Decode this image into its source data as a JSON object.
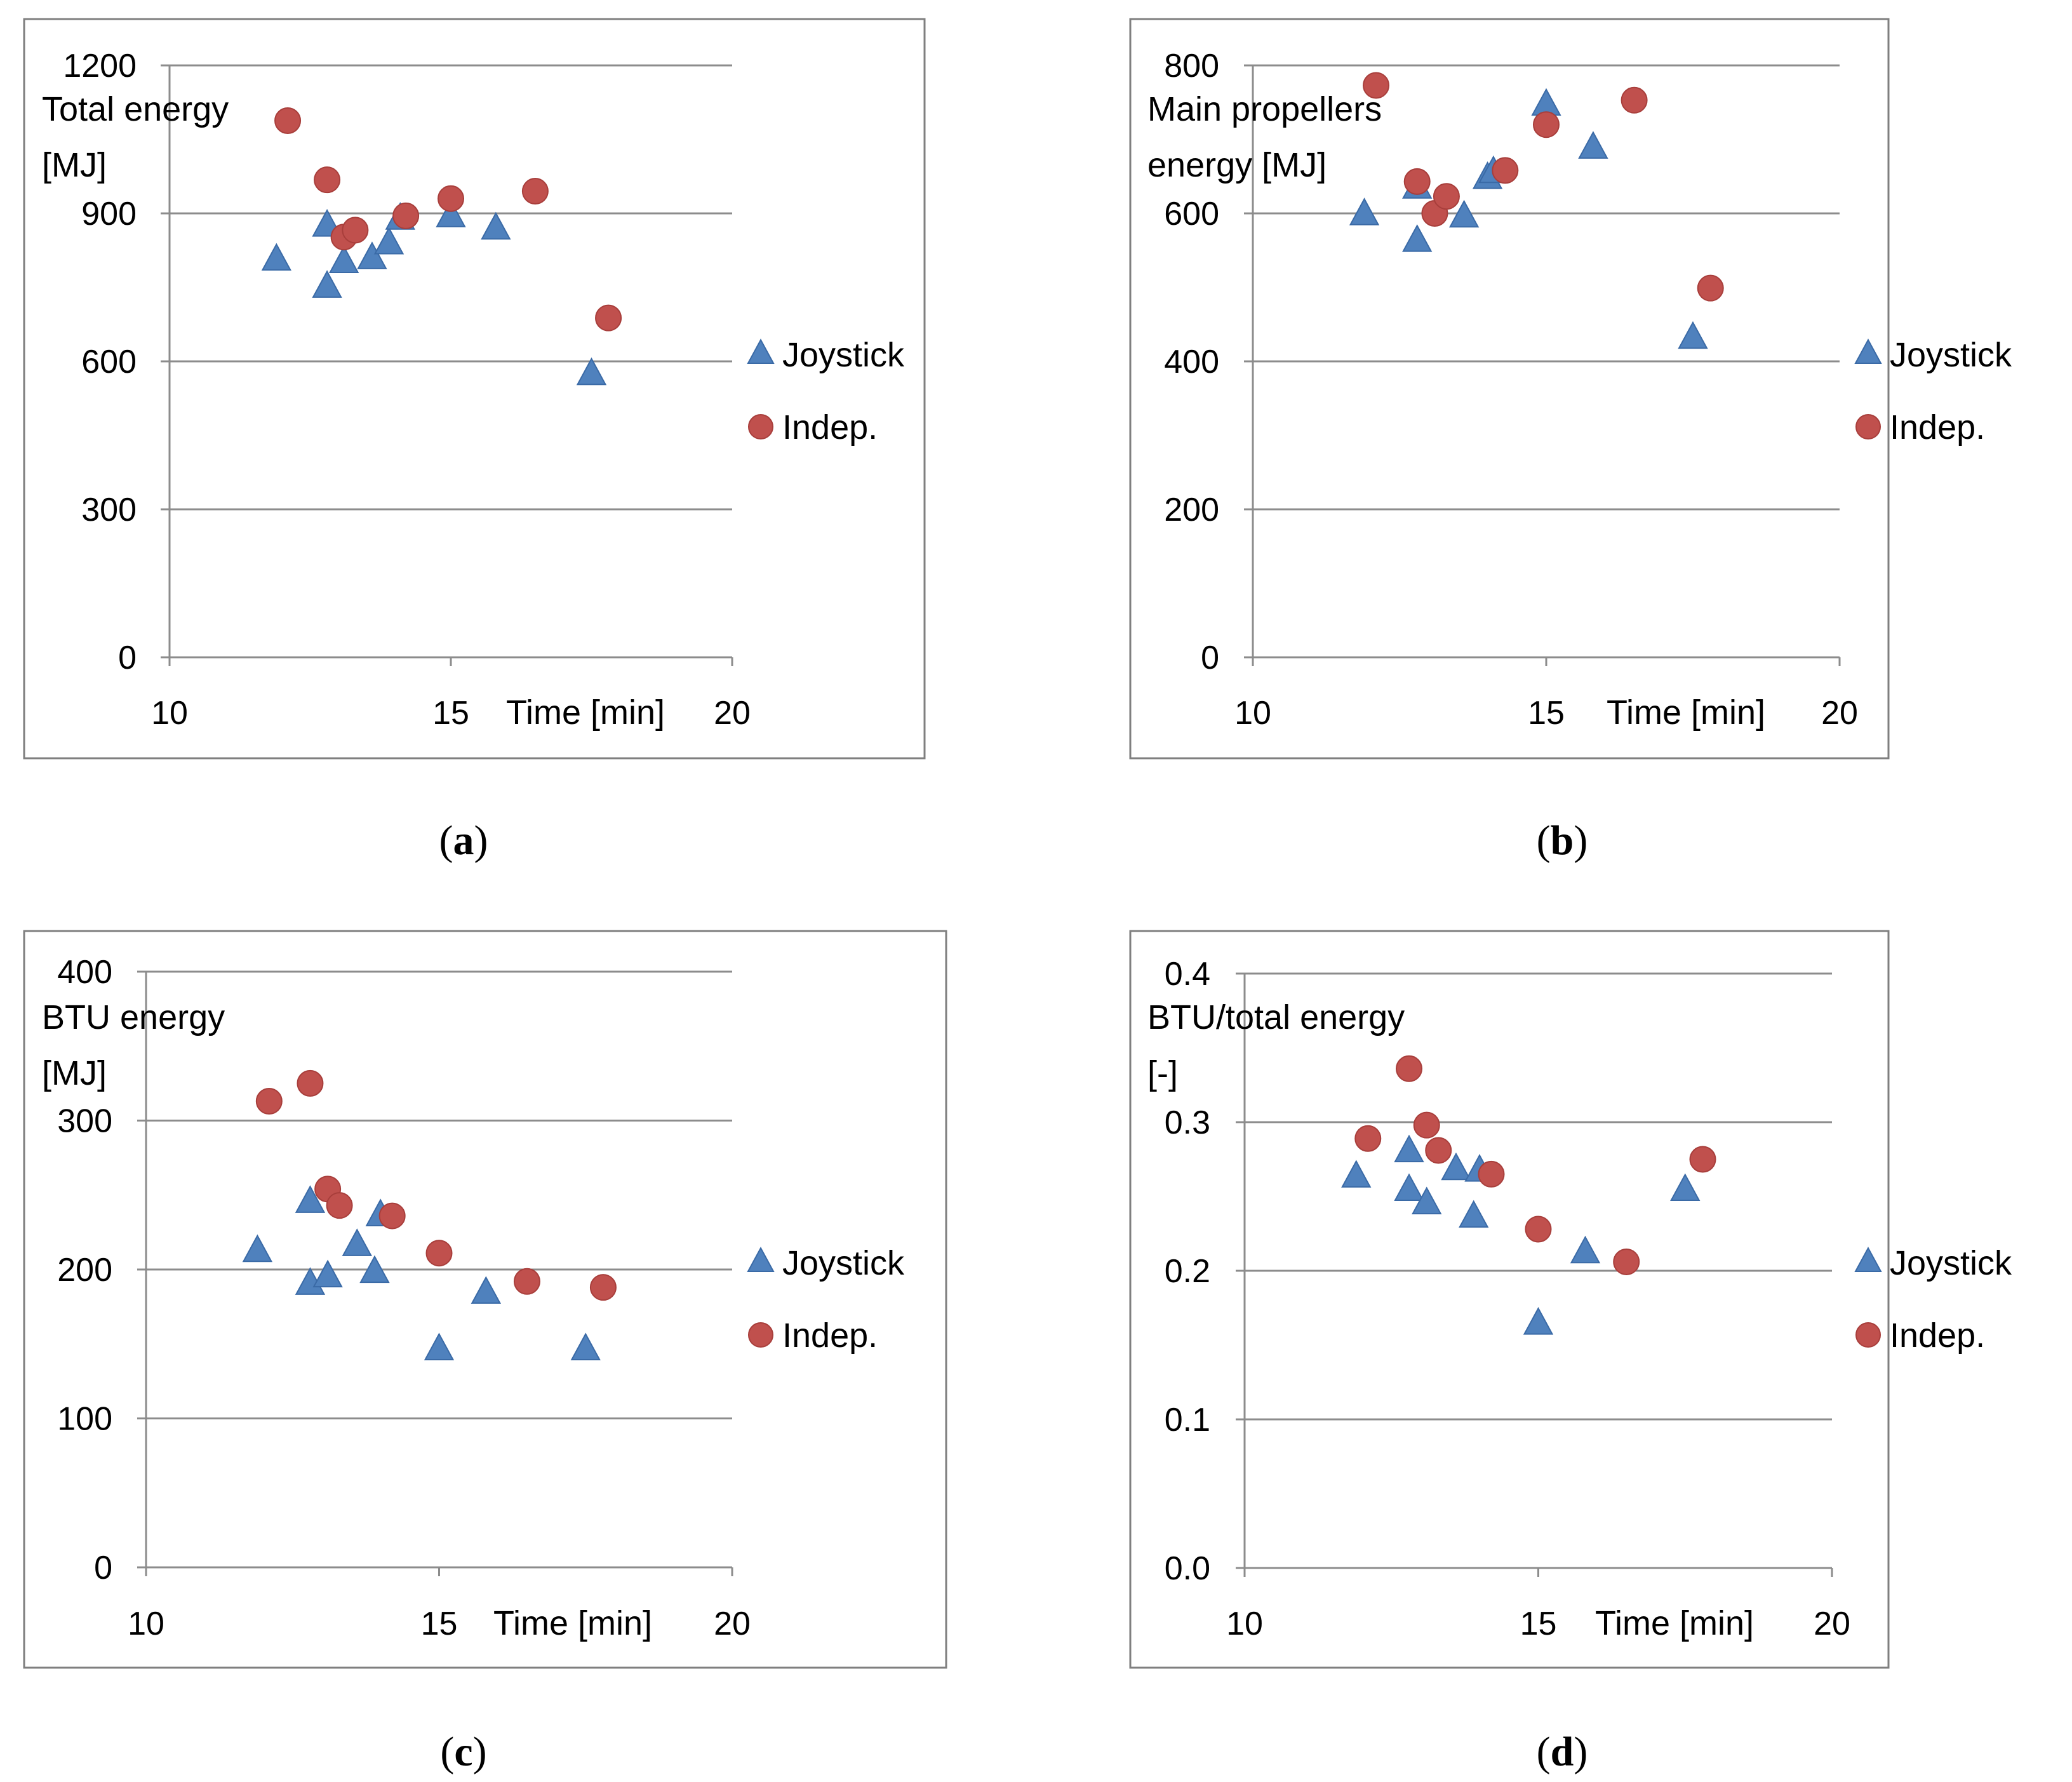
{
  "colors": {
    "joystick": "#4F81BD",
    "joystick_edge": "#3A6AA6",
    "indep": "#C0504D",
    "indep_edge": "#A83E3B",
    "grid": "#8C8C8C",
    "frame": "#7F7F7F"
  },
  "chart_data": [
    {
      "type": "scatter",
      "caption_open": "(",
      "caption_letter": "a",
      "caption_close": ")",
      "ylabel_lines": [
        "Total energy",
        "[MJ]"
      ],
      "xlabel": "Time [min]",
      "xlim": [
        10,
        20
      ],
      "ylim": [
        0,
        1200
      ],
      "xticks": [
        10,
        15,
        20
      ],
      "yticks": [
        0,
        300,
        600,
        900,
        1200
      ],
      "ytick_labels": [
        "0",
        "300",
        "600",
        "900",
        "1200"
      ],
      "grid": true,
      "legend": "right",
      "series": [
        {
          "name": "Joystick",
          "marker": "triangle",
          "points": [
            [
              11.9,
              805
            ],
            [
              12.8,
              874
            ],
            [
              12.8,
              750
            ],
            [
              13.1,
              800
            ],
            [
              13.6,
              808
            ],
            [
              13.9,
              838
            ],
            [
              14.1,
              888
            ],
            [
              15.0,
              893
            ],
            [
              15.8,
              868
            ],
            [
              17.5,
              573
            ]
          ]
        },
        {
          "name": "Indep.",
          "marker": "circle",
          "points": [
            [
              12.1,
              1088
            ],
            [
              12.8,
              968
            ],
            [
              13.1,
              852
            ],
            [
              13.3,
              866
            ],
            [
              14.2,
              895
            ],
            [
              15.0,
              930
            ],
            [
              16.5,
              945
            ],
            [
              17.8,
              688
            ]
          ]
        }
      ]
    },
    {
      "type": "scatter",
      "caption_open": "(",
      "caption_letter": "b",
      "caption_close": ")",
      "ylabel_lines": [
        "Main propellers",
        "energy [MJ]"
      ],
      "xlabel": "Time [min]",
      "xlim": [
        10,
        20
      ],
      "ylim": [
        0,
        800
      ],
      "xticks": [
        10,
        15,
        20
      ],
      "yticks": [
        0,
        200,
        400,
        600,
        800
      ],
      "ytick_labels": [
        "0",
        "200",
        "400",
        "600",
        "800"
      ],
      "grid": true,
      "legend": "right",
      "series": [
        {
          "name": "Joystick",
          "marker": "triangle",
          "points": [
            [
              11.9,
              598
            ],
            [
              12.8,
              634
            ],
            [
              12.8,
              562
            ],
            [
              13.6,
              595
            ],
            [
              14.0,
              647
            ],
            [
              14.1,
              655
            ],
            [
              15.0,
              746
            ],
            [
              15.8,
              688
            ],
            [
              17.5,
              431
            ]
          ]
        },
        {
          "name": "Indep.",
          "marker": "circle",
          "points": [
            [
              12.1,
              773
            ],
            [
              12.8,
              643
            ],
            [
              13.1,
              600
            ],
            [
              13.3,
              623
            ],
            [
              14.3,
              658
            ],
            [
              15.0,
              720
            ],
            [
              16.5,
              753
            ],
            [
              17.8,
              499
            ]
          ]
        }
      ]
    },
    {
      "type": "scatter",
      "caption_open": "(",
      "caption_letter": "c",
      "caption_close": ")",
      "ylabel_lines": [
        "BTU energy",
        "[MJ]"
      ],
      "xlabel": "Time [min]",
      "xlim": [
        10,
        20
      ],
      "ylim": [
        0,
        400
      ],
      "xticks": [
        10,
        15,
        20
      ],
      "yticks": [
        0,
        100,
        200,
        300,
        400
      ],
      "ytick_labels": [
        "0",
        "100",
        "200",
        "300",
        "400"
      ],
      "grid": true,
      "legend": "right",
      "series": [
        {
          "name": "Joystick",
          "marker": "triangle",
          "points": [
            [
              11.9,
              212
            ],
            [
              12.8,
              245
            ],
            [
              12.8,
              190
            ],
            [
              13.1,
              195
            ],
            [
              13.6,
              216
            ],
            [
              13.9,
              198
            ],
            [
              14.0,
              236
            ],
            [
              15.0,
              146
            ],
            [
              15.8,
              184
            ],
            [
              17.5,
              146
            ]
          ]
        },
        {
          "name": "Indep.",
          "marker": "circle",
          "points": [
            [
              12.1,
              313
            ],
            [
              12.8,
              325
            ],
            [
              13.1,
              254
            ],
            [
              13.3,
              243
            ],
            [
              14.2,
              236
            ],
            [
              15.0,
              211
            ],
            [
              16.5,
              192
            ],
            [
              17.8,
              188
            ]
          ]
        }
      ]
    },
    {
      "type": "scatter",
      "caption_open": "(",
      "caption_letter": "d",
      "caption_close": ")",
      "ylabel_lines": [
        "BTU/total energy",
        "[-]"
      ],
      "xlabel": "Time [min]",
      "xlim": [
        10,
        20
      ],
      "ylim": [
        0,
        0.4
      ],
      "xticks": [
        10,
        15,
        20
      ],
      "yticks": [
        0,
        0.1,
        0.2,
        0.3,
        0.4
      ],
      "ytick_labels": [
        "0.0",
        "0.1",
        "0.2",
        "0.3",
        "0.4"
      ],
      "grid": true,
      "legend": "right",
      "series": [
        {
          "name": "Joystick",
          "marker": "triangle",
          "points": [
            [
              11.9,
              0.263
            ],
            [
              12.8,
              0.28
            ],
            [
              12.8,
              0.254
            ],
            [
              13.1,
              0.245
            ],
            [
              13.6,
              0.268
            ],
            [
              13.9,
              0.236
            ],
            [
              14.0,
              0.267
            ],
            [
              15.0,
              0.164
            ],
            [
              15.8,
              0.212
            ],
            [
              17.5,
              0.254
            ]
          ]
        },
        {
          "name": "Indep.",
          "marker": "circle",
          "points": [
            [
              12.1,
              0.289
            ],
            [
              12.8,
              0.336
            ],
            [
              13.1,
              0.298
            ],
            [
              13.3,
              0.281
            ],
            [
              14.2,
              0.265
            ],
            [
              15.0,
              0.228
            ],
            [
              16.5,
              0.206
            ],
            [
              17.8,
              0.275
            ]
          ]
        }
      ]
    }
  ]
}
